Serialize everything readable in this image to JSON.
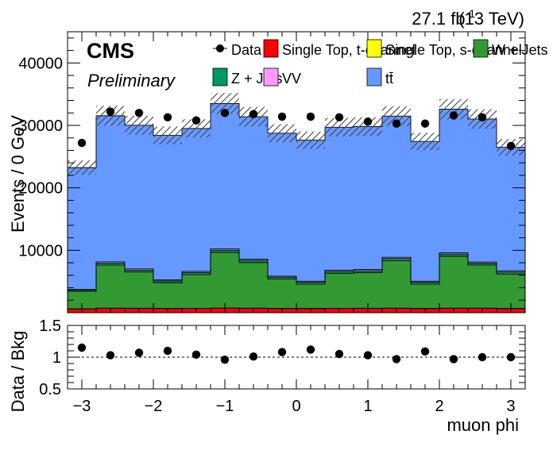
{
  "header": {
    "lumi_label": "27.1 fb",
    "lumi_exp": "-1",
    "energy_label": "(13 TeV)",
    "experiment": "CMS",
    "status": "Preliminary"
  },
  "legend": {
    "entries": [
      {
        "label": "Data",
        "kind": "marker",
        "color": "#000000"
      },
      {
        "label": "Single Top, t-channel",
        "kind": "box",
        "color": "#ff0000"
      },
      {
        "label": "Single Top, s-channel",
        "kind": "box",
        "color": "#ffff00"
      },
      {
        "label": "W + Jets",
        "kind": "box",
        "color": "#339933"
      },
      {
        "label": "Z + Jets",
        "kind": "box",
        "color": "#009966"
      },
      {
        "label": "VV",
        "kind": "box",
        "color": "#ff99ff"
      },
      {
        "label": "tt̄",
        "kind": "box",
        "color": "#6699ff"
      }
    ]
  },
  "chart_data": [
    {
      "type": "bar",
      "stacked": true,
      "title": "",
      "xlabel": "",
      "ylabel": "Events / 0 GeV",
      "xlim": [
        -3.2,
        3.2
      ],
      "ylim": [
        0,
        45000
      ],
      "yticks": [
        10000,
        20000,
        30000,
        40000
      ],
      "bin_edges": [
        -3.2,
        -2.8,
        -2.4,
        -2.0,
        -1.6,
        -1.2,
        -0.8,
        -0.4,
        0.0,
        0.4,
        0.8,
        1.2,
        1.6,
        2.0,
        2.4,
        2.8,
        3.2
      ],
      "series": [
        {
          "name": "Single Top, t-channel",
          "color": "#ff0000",
          "values": [
            600,
            700,
            680,
            660,
            670,
            720,
            700,
            660,
            650,
            670,
            680,
            690,
            650,
            700,
            690,
            650
          ]
        },
        {
          "name": "Single Top, s-channel",
          "color": "#ffff00",
          "values": [
            30,
            40,
            40,
            40,
            40,
            40,
            40,
            40,
            40,
            40,
            40,
            40,
            40,
            40,
            40,
            40
          ]
        },
        {
          "name": "W + Jets",
          "color": "#339933",
          "values": [
            2800,
            6900,
            5800,
            4100,
            5400,
            8900,
            7300,
            4700,
            3900,
            5600,
            5700,
            7600,
            3900,
            8300,
            6900,
            5500
          ]
        },
        {
          "name": "Z + Jets",
          "color": "#009966",
          "values": [
            200,
            300,
            300,
            300,
            300,
            350,
            350,
            300,
            300,
            300,
            300,
            350,
            300,
            350,
            300,
            300
          ]
        },
        {
          "name": "VV",
          "color": "#ff99ff",
          "values": [
            100,
            200,
            200,
            150,
            200,
            200,
            200,
            150,
            150,
            200,
            200,
            200,
            150,
            200,
            200,
            200
          ]
        },
        {
          "name": "tt̄",
          "color": "#6699ff",
          "values": [
            19500,
            23400,
            23000,
            23150,
            22900,
            23300,
            22800,
            22900,
            22600,
            22900,
            22900,
            22600,
            22400,
            23000,
            22900,
            19800
          ]
        }
      ],
      "uncertainty": {
        "pattern": "hatched",
        "rel": 0.05
      },
      "data": {
        "name": "Data",
        "x": [
          -3.0,
          -2.6,
          -2.2,
          -1.8,
          -1.4,
          -1.0,
          -0.6,
          -0.2,
          0.2,
          0.6,
          1.0,
          1.4,
          1.8,
          2.2,
          2.6,
          3.0
        ],
        "y": [
          27200,
          32200,
          32000,
          31300,
          30800,
          32000,
          31800,
          31400,
          31400,
          31300,
          30600,
          30300,
          30300,
          31600,
          31300,
          26700
        ]
      }
    },
    {
      "type": "scatter",
      "title": "",
      "xlabel": "muon phi",
      "ylabel": "Data / Bkg",
      "xlim": [
        -3.2,
        3.2
      ],
      "ylim": [
        0.5,
        1.5
      ],
      "xticks": [
        -3,
        -2,
        -1,
        0,
        1,
        2,
        3
      ],
      "xtick_labels": [
        "−3",
        "−2",
        "−1",
        "0",
        "1",
        "2",
        "3"
      ],
      "yticks": [
        0.5,
        1,
        1.5
      ],
      "ytick_labels": [
        "0.5",
        "1",
        "1.5"
      ],
      "reference_line": 1,
      "x": [
        -3.0,
        -2.6,
        -2.2,
        -1.8,
        -1.4,
        -1.0,
        -0.6,
        -0.2,
        0.2,
        0.6,
        1.0,
        1.4,
        1.8,
        2.2,
        2.6,
        3.0
      ],
      "y": [
        1.15,
        1.03,
        1.07,
        1.1,
        1.04,
        0.96,
        1.01,
        1.08,
        1.12,
        1.05,
        1.03,
        0.97,
        1.09,
        0.97,
        1.0,
        1.0
      ]
    }
  ],
  "ytick_labels_main": [
    "10000",
    "20000",
    "30000",
    "40000"
  ]
}
